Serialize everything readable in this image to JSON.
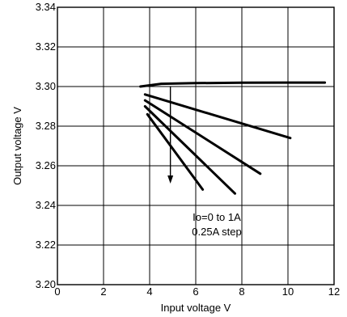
{
  "chart_data": {
    "type": "line",
    "xlabel": "Input voltage  V",
    "ylabel": "Output voltage  V",
    "xlim": [
      0,
      12
    ],
    "ylim": [
      3.2,
      3.34
    ],
    "x_ticks": [
      "0",
      "2",
      "4",
      "6",
      "8",
      "10",
      "12"
    ],
    "y_ticks": [
      "3.20",
      "3.22",
      "3.24",
      "3.26",
      "3.28",
      "3.30",
      "3.32",
      "3.34"
    ],
    "grid": true,
    "series": [
      {
        "x": [
          3.6,
          4.5,
          6.0,
          8.0,
          10.0,
          11.6
        ],
        "y": [
          3.3,
          3.3014,
          3.3017,
          3.3019,
          3.302,
          3.302
        ]
      },
      {
        "x": [
          3.8,
          10.1
        ],
        "y": [
          3.296,
          3.274
        ]
      },
      {
        "x": [
          3.8,
          8.8
        ],
        "y": [
          3.293,
          3.256
        ]
      },
      {
        "x": [
          3.8,
          7.7
        ],
        "y": [
          3.29,
          3.246
        ]
      },
      {
        "x": [
          3.9,
          6.3
        ],
        "y": [
          3.286,
          3.248
        ]
      }
    ],
    "annotation_lines": [
      "Io=0 to 1A",
      "0.25A step"
    ],
    "arrow": {
      "x": 4.9,
      "y_from": 3.3,
      "y_to": 3.251
    }
  }
}
